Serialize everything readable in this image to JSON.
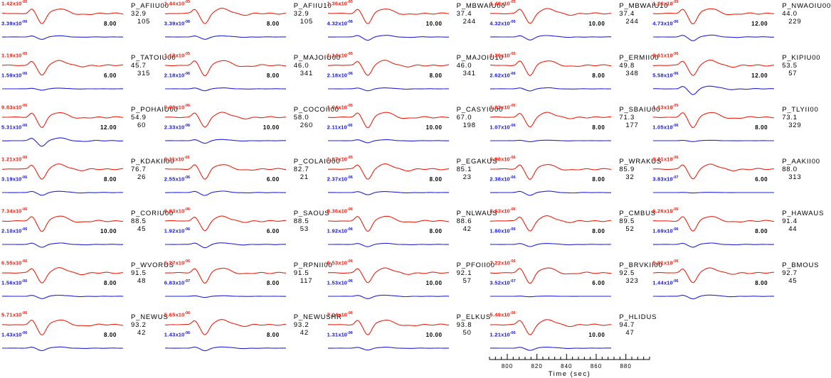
{
  "figure": {
    "background": "#ffffff",
    "exp_notation": "x10",
    "colors": {
      "observed_trace": "#ee2211",
      "synthetic_trace": "#2222dd",
      "text": "#000000"
    },
    "time_axis": {
      "title": "Time (sec)",
      "major_ticks": [
        "800",
        "820",
        "840",
        "860",
        "880"
      ],
      "minor_step_sec": 4,
      "range_sec": [
        788,
        896
      ]
    }
  },
  "chart_data": {
    "type": "line",
    "description": "Record section of P-wave seismogram pairs: for each station a red trace (peak amplitude label top-left, red) above a blue trace (peak amplitude label, blue) with measurement window length (sec) in black, plus station code, epicentral distance (deg) and azimuth (deg) at right. Shared time axis 800-880 sec under fourth column.",
    "series_colors": {
      "red": "#ee2211",
      "blue": "#2222dd"
    },
    "stations": [
      {
        "name": "P_AFIIU00",
        "red_amp": "1.42",
        "red_exp": "-05",
        "blue_amp": "3.39",
        "blue_exp": "-06",
        "window": "8.00",
        "dist": "32.9",
        "az": "105"
      },
      {
        "name": "P_AFIIU10",
        "red_amp": "1.44",
        "red_exp": "-05",
        "blue_amp": "3.39",
        "blue_exp": "-06",
        "window": "8.00",
        "dist": "32.9",
        "az": "105"
      },
      {
        "name": "P_MBWAIU00",
        "red_amp": "1.36",
        "red_exp": "-05",
        "blue_amp": "4.32",
        "blue_exp": "-06",
        "window": "10.00",
        "dist": "37.4",
        "az": "244"
      },
      {
        "name": "P_MBWAIU10",
        "red_amp": "1.40",
        "red_exp": "-05",
        "blue_amp": "4.32",
        "blue_exp": "-06",
        "window": "10.00",
        "dist": "37.4",
        "az": "244"
      },
      {
        "name": "P_NWAOIU00",
        "red_amp": "1.26",
        "red_exp": "-05",
        "blue_amp": "4.73",
        "blue_exp": "-06",
        "window": "12.00",
        "dist": "44.0",
        "az": "229"
      },
      {
        "name": "P_TATOIU00",
        "red_amp": "1.19",
        "red_exp": "-05",
        "blue_amp": "1.59",
        "blue_exp": "-06",
        "window": "6.00",
        "dist": "45.7",
        "az": "315"
      },
      {
        "name": "P_MAJOIU00",
        "red_amp": "1.12",
        "red_exp": "-05",
        "blue_amp": "2.18",
        "blue_exp": "-06",
        "window": "8.00",
        "dist": "46.0",
        "az": "341"
      },
      {
        "name": "P_MAJOIU10",
        "red_amp": "1.14",
        "red_exp": "-05",
        "blue_amp": "2.18",
        "blue_exp": "-06",
        "window": "8.00",
        "dist": "46.0",
        "az": "341"
      },
      {
        "name": "P_ERMII00",
        "red_amp": "1.26",
        "red_exp": "-05",
        "blue_amp": "2.62",
        "blue_exp": "-06",
        "window": "8.00",
        "dist": "49.8",
        "az": "348"
      },
      {
        "name": "P_KIPIU00",
        "red_amp": "9.61",
        "red_exp": "-06",
        "blue_amp": "5.58",
        "blue_exp": "-06",
        "window": "12.00",
        "dist": "53.5",
        "az": "57"
      },
      {
        "name": "P_POHAIU00",
        "red_amp": "9.83",
        "red_exp": "-06",
        "blue_amp": "5.31",
        "blue_exp": "-06",
        "window": "12.00",
        "dist": "54.9",
        "az": "60"
      },
      {
        "name": "P_COCOII00",
        "red_amp": "9.08",
        "red_exp": "-06",
        "blue_amp": "2.33",
        "blue_exp": "-06",
        "window": "10.00",
        "dist": "58.0",
        "az": "260"
      },
      {
        "name": "P_CASYIU00",
        "red_amp": "1.04",
        "red_exp": "-05",
        "blue_amp": "2.11",
        "blue_exp": "-06",
        "window": "10.00",
        "dist": "67.0",
        "az": "198"
      },
      {
        "name": "P_SBAIU00",
        "red_amp": "1.03",
        "red_exp": "-05",
        "blue_amp": "1.07",
        "blue_exp": "-06",
        "window": "8.00",
        "dist": "71.3",
        "az": "177"
      },
      {
        "name": "P_TLYII00",
        "red_amp": "1.13",
        "red_exp": "-05",
        "blue_amp": "1.05",
        "blue_exp": "-06",
        "window": "8.00",
        "dist": "73.1",
        "az": "329"
      },
      {
        "name": "P_KDAKII00",
        "red_amp": "1.21",
        "red_exp": "-05",
        "blue_amp": "3.19",
        "blue_exp": "-06",
        "window": "8.00",
        "dist": "76.7",
        "az": "26"
      },
      {
        "name": "P_COLAIU00",
        "red_amp": "9.11",
        "red_exp": "-06",
        "blue_amp": "2.55",
        "blue_exp": "-06",
        "window": "6.00",
        "dist": "82.7",
        "az": "21"
      },
      {
        "name": "P_EGAKUS",
        "red_amp": "1.07",
        "red_exp": "-05",
        "blue_amp": "2.37",
        "blue_exp": "-06",
        "window": "8.00",
        "dist": "85.1",
        "az": "23"
      },
      {
        "name": "P_WRAKUS",
        "red_amp": "8.88",
        "red_exp": "-06",
        "blue_amp": "2.38",
        "blue_exp": "-06",
        "window": "8.00",
        "dist": "85.9",
        "az": "32"
      },
      {
        "name": "P_AAKII00",
        "red_amp": "9.21",
        "red_exp": "-06",
        "blue_amp": "3.83",
        "blue_exp": "-07",
        "window": "6.00",
        "dist": "88.0",
        "az": "313"
      },
      {
        "name": "P_CORIU00",
        "red_amp": "7.34",
        "red_exp": "-06",
        "blue_amp": "2.10",
        "blue_exp": "-06",
        "window": "10.00",
        "dist": "88.5",
        "az": "45"
      },
      {
        "name": "P_SAOUS",
        "red_amp": "6.03",
        "red_exp": "-06",
        "blue_amp": "1.92",
        "blue_exp": "-06",
        "window": "6.00",
        "dist": "88.5",
        "az": "53"
      },
      {
        "name": "P_NLWAUS",
        "red_amp": "8.36",
        "red_exp": "-06",
        "blue_amp": "1.92",
        "blue_exp": "-06",
        "window": "8.00",
        "dist": "88.6",
        "az": "42"
      },
      {
        "name": "P_CMBUS",
        "red_amp": "8.63",
        "red_exp": "-06",
        "blue_amp": "1.80",
        "blue_exp": "-06",
        "window": "8.00",
        "dist": "89.5",
        "az": "52"
      },
      {
        "name": "P_HAWAUS",
        "red_amp": "6.26",
        "red_exp": "-06",
        "blue_amp": "1.69",
        "blue_exp": "-06",
        "window": "8.00",
        "dist": "91.4",
        "az": "44"
      },
      {
        "name": "P_WVORUS",
        "red_amp": "6.55",
        "red_exp": "-06",
        "blue_amp": "1.56",
        "blue_exp": "-06",
        "window": "8.00",
        "dist": "91.5",
        "az": "48"
      },
      {
        "name": "P_RPNII00",
        "red_amp": "6.27",
        "red_exp": "-06",
        "blue_amp": "6.83",
        "blue_exp": "-07",
        "window": "8.00",
        "dist": "91.5",
        "az": "117"
      },
      {
        "name": "P_PFOII00",
        "red_amp": "6.53",
        "red_exp": "-06",
        "blue_amp": "1.53",
        "blue_exp": "-06",
        "window": "10.00",
        "dist": "92.1",
        "az": "57"
      },
      {
        "name": "P_BRVKII00",
        "red_amp": "7.22",
        "red_exp": "-06",
        "blue_amp": "3.52",
        "blue_exp": "-07",
        "window": "6.00",
        "dist": "92.5",
        "az": "323"
      },
      {
        "name": "P_BMOUS",
        "red_amp": "5.81",
        "red_exp": "-06",
        "blue_amp": "1.44",
        "blue_exp": "-06",
        "window": "8.00",
        "dist": "92.7",
        "az": "45"
      },
      {
        "name": "P_NEWUS",
        "red_amp": "5.71",
        "red_exp": "-06",
        "blue_amp": "1.43",
        "blue_exp": "-06",
        "window": "8.00",
        "dist": "93.2",
        "az": "42"
      },
      {
        "name": "P_NEWUSHR",
        "red_amp": "5.65",
        "red_exp": "-06",
        "blue_amp": "1.43",
        "blue_exp": "-06",
        "window": "8.00",
        "dist": "93.2",
        "az": "42"
      },
      {
        "name": "P_ELKUS",
        "red_amp": "7.04",
        "red_exp": "-06",
        "blue_amp": "1.31",
        "blue_exp": "-06",
        "window": "10.00",
        "dist": "93.8",
        "az": "50"
      },
      {
        "name": "P_HLIDUS",
        "red_amp": "5.49",
        "red_exp": "-06",
        "blue_amp": "1.21",
        "blue_exp": "-06",
        "window": "10.00",
        "dist": "94.7",
        "az": "47"
      }
    ]
  }
}
